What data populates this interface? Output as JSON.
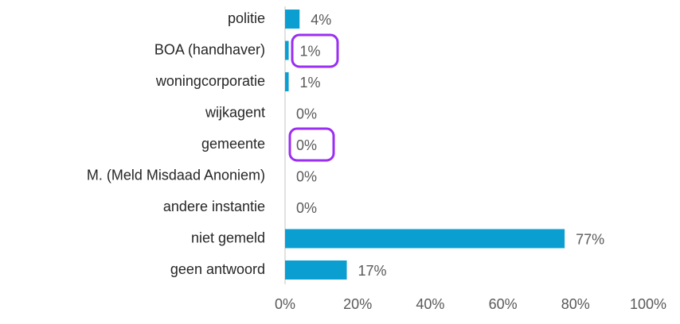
{
  "chart_data": {
    "type": "barh",
    "categories": [
      "politie",
      "BOA (handhaver)",
      "woningcorporatie",
      "wijkagent",
      "gemeente",
      "M. (Meld Misdaad Anoniem)",
      "andere instantie",
      "niet gemeld",
      "geen antwoord"
    ],
    "values": [
      4,
      1,
      1,
      0,
      0,
      0,
      0,
      77,
      17
    ],
    "value_labels": [
      "4%",
      "1%",
      "1%",
      "0%",
      "0%",
      "0%",
      "0%",
      "77%",
      "17%"
    ],
    "color": "#0a9fd0",
    "xlim": [
      0,
      100
    ],
    "xticks": [
      {
        "value": 0,
        "label": "0%"
      },
      {
        "value": 20,
        "label": "20%"
      },
      {
        "value": 40,
        "label": "40%"
      },
      {
        "value": 60,
        "label": "60%"
      },
      {
        "value": 80,
        "label": "80%"
      },
      {
        "value": 100,
        "label": "100%"
      }
    ],
    "grid": false
  }
}
